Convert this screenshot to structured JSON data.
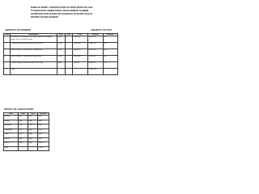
{
  "header": {
    "lines": [
      "NAME OF WORK: CONSTRUCTION OF ROAD FROM VILLAGE",
      "TO MAIN ROAD UNDER RURAL DEVELOPMENT SCHEME",
      "ESTIMATED COST BASED ON SCHEDULE OF RATES 2015-16",
      "DISTRICT ROADS DIVISION"
    ],
    "subtitle": "ABSTRACT OF ESTIMATE",
    "note": "ABSTRACT OF COST"
  },
  "table": {
    "columns": [
      "S.No",
      "Description",
      "Unit",
      "Qty",
      "Rate",
      "Amount",
      "Remarks"
    ],
    "rows": [
      [
        "1",
        "Earthwork in excavation for road formation including disposal of excavated earth",
        "Cum",
        "1",
        "35000.00",
        "35000.00",
        "SR"
      ],
      [
        "2",
        "Providing and laying gravel base course",
        "Cum",
        "1",
        "12500.00",
        "12500.00",
        "SR"
      ],
      [
        "3",
        "WBM Grade II 100mm thick compacted",
        "Cum",
        "1",
        "18400.00",
        "18400.00",
        "SR"
      ],
      [
        "4",
        "WBM Grade III 75mm thick compacted",
        "Cum",
        "1",
        "16200.00",
        "16200.00",
        "SR"
      ],
      [
        "5",
        "Premix carpet 20mm thick with seal coat",
        "Sqm",
        "1",
        "9800.00",
        "9800.00",
        "SR"
      ],
      [
        "6",
        "Total",
        "",
        "",
        "",
        "91900.00",
        ""
      ]
    ]
  },
  "labour": {
    "title": "DETAILS OF LABOUR RATES",
    "columns": [
      "Item",
      "Rate",
      "Unit",
      "Amount"
    ],
    "rows": [
      [
        "Mason",
        "450",
        "Day",
        "450"
      ],
      [
        "Helper",
        "300",
        "Day",
        "300"
      ],
      [
        "Mazdoor",
        "280",
        "Day",
        "280"
      ],
      [
        "Carpenter",
        "450",
        "Day",
        "450"
      ],
      [
        "Fitter",
        "400",
        "Day",
        "400"
      ],
      [
        "Driver",
        "380",
        "Day",
        "380"
      ],
      [
        "Roller",
        "2500",
        "Day",
        "2500"
      ],
      [
        "Total",
        "",
        "",
        "4760"
      ]
    ]
  }
}
